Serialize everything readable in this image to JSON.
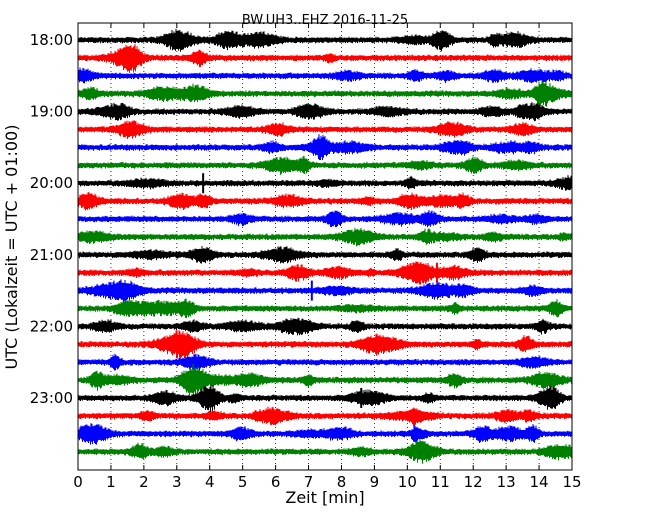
{
  "chart_data": {
    "type": "line",
    "title": "BW.UH3..EHZ 2016-11-25",
    "xlabel": "Zeit  [min]",
    "ylabel": "UTC (Lokalzeit = UTC + 01:00)",
    "xlim": [
      0,
      15
    ],
    "x_ticks": [
      "0",
      "1",
      "2",
      "3",
      "4",
      "5",
      "6",
      "7",
      "8",
      "9",
      "10",
      "11",
      "12",
      "13",
      "14",
      "15"
    ],
    "y_ticks": [
      "18:00",
      "19:00",
      "20:00",
      "21:00",
      "22:00",
      "23:00"
    ],
    "trace_interval_minutes": 15,
    "trace_start": "18:00",
    "trace_count": 24,
    "trace_colors": [
      "#000000",
      "#ff0000",
      "#0000ff",
      "#008000"
    ],
    "vertical_grid": "dotted",
    "events": [
      {
        "trace": 8,
        "minute": 3.8
      },
      {
        "trace": 13,
        "minute": 10.9
      },
      {
        "trace": 14,
        "minute": 7.1
      },
      {
        "trace": 20,
        "minute": 8.6
      }
    ]
  }
}
